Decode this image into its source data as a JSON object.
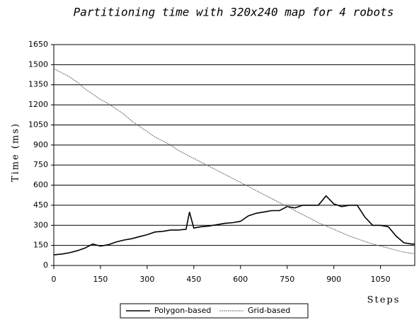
{
  "chart_data": {
    "type": "line",
    "title": "Partitioning time with 320x240 map for 4 robots",
    "x_label": "Steps",
    "y_label": "Time (ms)",
    "x": [
      0,
      25,
      50,
      75,
      100,
      125,
      150,
      175,
      200,
      225,
      250,
      275,
      300,
      325,
      350,
      375,
      400,
      425,
      436,
      450,
      475,
      500,
      525,
      550,
      575,
      600,
      625,
      650,
      675,
      700,
      725,
      750,
      775,
      800,
      825,
      850,
      875,
      900,
      925,
      950,
      975,
      1000,
      1025,
      1050,
      1075,
      1100,
      1125,
      1150,
      1160
    ],
    "series": [
      {
        "name": "Polygon-based",
        "color": "#000000",
        "values": [
          80,
          85,
          95,
          110,
          130,
          160,
          145,
          155,
          175,
          190,
          200,
          215,
          230,
          250,
          255,
          265,
          265,
          270,
          400,
          280,
          290,
          295,
          305,
          315,
          320,
          330,
          370,
          390,
          400,
          410,
          410,
          440,
          430,
          450,
          450,
          450,
          520,
          460,
          440,
          450,
          450,
          360,
          300,
          300,
          290,
          220,
          170,
          160,
          160
        ]
      },
      {
        "name": "Grid-based",
        "color": "#666666",
        "values": [
          1470,
          1440,
          1410,
          1370,
          1320,
          1280,
          1240,
          1210,
          1170,
          1130,
          1080,
          1040,
          1000,
          960,
          930,
          900,
          860,
          830,
          815,
          800,
          770,
          740,
          710,
          680,
          650,
          620,
          590,
          560,
          530,
          500,
          470,
          440,
          410,
          380,
          350,
          320,
          295,
          270,
          245,
          220,
          200,
          180,
          160,
          145,
          130,
          115,
          100,
          90,
          90
        ]
      }
    ],
    "xlim": [
      0,
      1160
    ],
    "xticks": [
      0,
      150,
      300,
      450,
      600,
      750,
      900,
      1050
    ],
    "ylim": [
      0,
      1650
    ],
    "yticks": [
      0,
      150,
      300,
      450,
      600,
      750,
      900,
      1050,
      1200,
      1350,
      1500,
      1650
    ],
    "grid": true,
    "legend": "bottom"
  }
}
